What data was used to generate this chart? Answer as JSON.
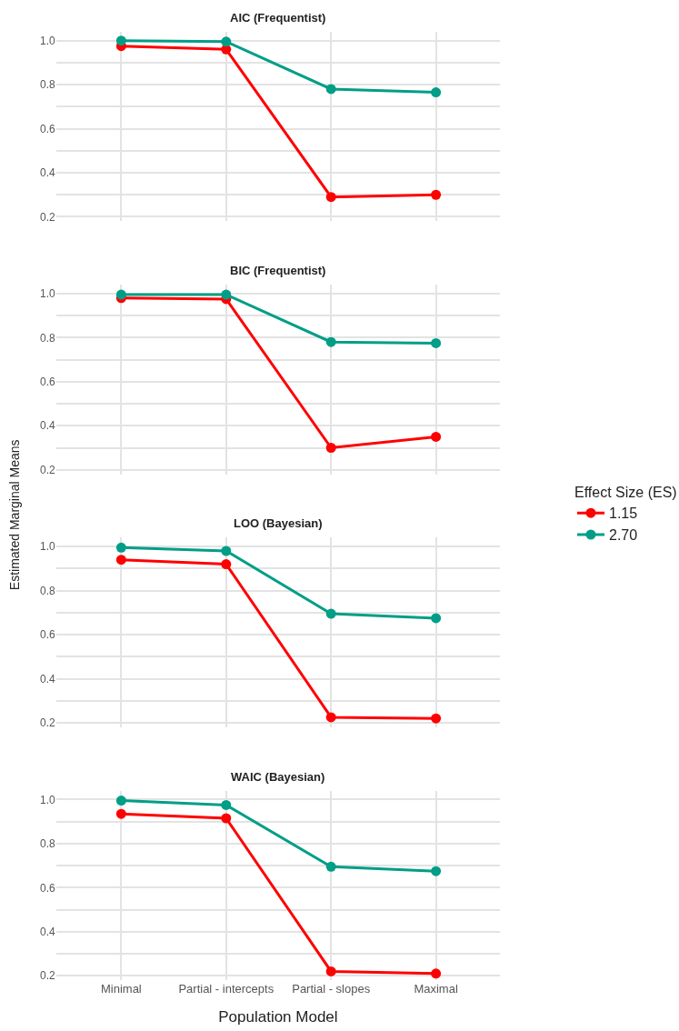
{
  "chart_data": [
    {
      "type": "line",
      "title": "AIC (Frequentist)",
      "categories": [
        null,
        null,
        null,
        null
      ],
      "tick_labels": "y",
      "legend": "right",
      "legend_title": "Effect Size (ES)",
      "ylim": [
        0.18,
        1.04
      ],
      "yticks": [
        {
          "value": 0.2,
          "label": "0.2"
        },
        {
          "value": 0.3,
          "label": null
        },
        {
          "value": 0.4,
          "label": "0.4"
        },
        {
          "value": 0.5,
          "label": null
        },
        {
          "value": 0.6,
          "label": "0.6"
        },
        {
          "value": 0.7,
          "label": null
        },
        {
          "value": 0.8,
          "label": "0.8"
        },
        {
          "value": 0.9,
          "label": null
        },
        {
          "value": 1.0,
          "label": "1.0"
        }
      ],
      "grid": true,
      "marker": "circle",
      "series": [
        {
          "name": "1.15",
          "color": "#ff0000",
          "values": [
            0.975,
            0.96,
            0.29,
            0.3
          ]
        },
        {
          "name": "2.70",
          "color": "#009e87",
          "values": [
            1.0,
            0.995,
            0.78,
            0.765
          ]
        }
      ]
    },
    {
      "type": "line",
      "title": "BIC (Frequentist)",
      "categories": [
        null,
        null,
        null,
        null
      ],
      "tick_labels": "y",
      "ylabel": "Estimated Marginal Means",
      "ylim": [
        0.18,
        1.04
      ],
      "yticks": [
        {
          "value": 0.2,
          "label": "0.2"
        },
        {
          "value": 0.3,
          "label": null
        },
        {
          "value": 0.4,
          "label": "0.4"
        },
        {
          "value": 0.5,
          "label": null
        },
        {
          "value": 0.6,
          "label": "0.6"
        },
        {
          "value": 0.7,
          "label": null
        },
        {
          "value": 0.8,
          "label": "0.8"
        },
        {
          "value": 0.9,
          "label": null
        },
        {
          "value": 1.0,
          "label": "1.0"
        }
      ],
      "grid": true,
      "marker": "circle",
      "series": [
        {
          "name": "1.15",
          "color": "#ff0000",
          "values": [
            0.98,
            0.975,
            0.3,
            0.35
          ]
        },
        {
          "name": "2.70",
          "color": "#009e87",
          "values": [
            0.995,
            0.995,
            0.78,
            0.775
          ]
        }
      ]
    },
    {
      "type": "line",
      "title": "LOO (Bayesian)",
      "categories": [
        null,
        null,
        null,
        null
      ],
      "tick_labels": "y",
      "ylim": [
        0.18,
        1.04
      ],
      "yticks": [
        {
          "value": 0.2,
          "label": "0.2"
        },
        {
          "value": 0.3,
          "label": null
        },
        {
          "value": 0.4,
          "label": "0.4"
        },
        {
          "value": 0.5,
          "label": null
        },
        {
          "value": 0.6,
          "label": "0.6"
        },
        {
          "value": 0.7,
          "label": null
        },
        {
          "value": 0.8,
          "label": "0.8"
        },
        {
          "value": 0.9,
          "label": null
        },
        {
          "value": 1.0,
          "label": "1.0"
        }
      ],
      "grid": true,
      "marker": "circle",
      "series": [
        {
          "name": "1.15",
          "color": "#ff0000",
          "values": [
            0.94,
            0.92,
            0.225,
            0.22
          ]
        },
        {
          "name": "2.70",
          "color": "#009e87",
          "values": [
            0.995,
            0.98,
            0.695,
            0.675
          ]
        }
      ]
    },
    {
      "type": "line",
      "title": "WAIC (Bayesian)",
      "categories": [
        "Minimal",
        "Partial - intercepts",
        "Partial - slopes",
        "Maximal"
      ],
      "xlabel": "Population Model",
      "ylim": [
        0.18,
        1.04
      ],
      "yticks": [
        {
          "value": 0.2,
          "label": "0.2"
        },
        {
          "value": 0.3,
          "label": null
        },
        {
          "value": 0.4,
          "label": "0.4"
        },
        {
          "value": 0.5,
          "label": null
        },
        {
          "value": 0.6,
          "label": "0.6"
        },
        {
          "value": 0.7,
          "label": null
        },
        {
          "value": 0.8,
          "label": "0.8"
        },
        {
          "value": 0.9,
          "label": null
        },
        {
          "value": 1.0,
          "label": "1.0"
        }
      ],
      "grid": true,
      "marker": "circle",
      "series": [
        {
          "name": "1.15",
          "color": "#ff0000",
          "values": [
            0.935,
            0.915,
            0.22,
            0.21
          ]
        },
        {
          "name": "2.70",
          "color": "#009e87",
          "values": [
            0.995,
            0.975,
            0.695,
            0.675
          ]
        }
      ]
    }
  ]
}
